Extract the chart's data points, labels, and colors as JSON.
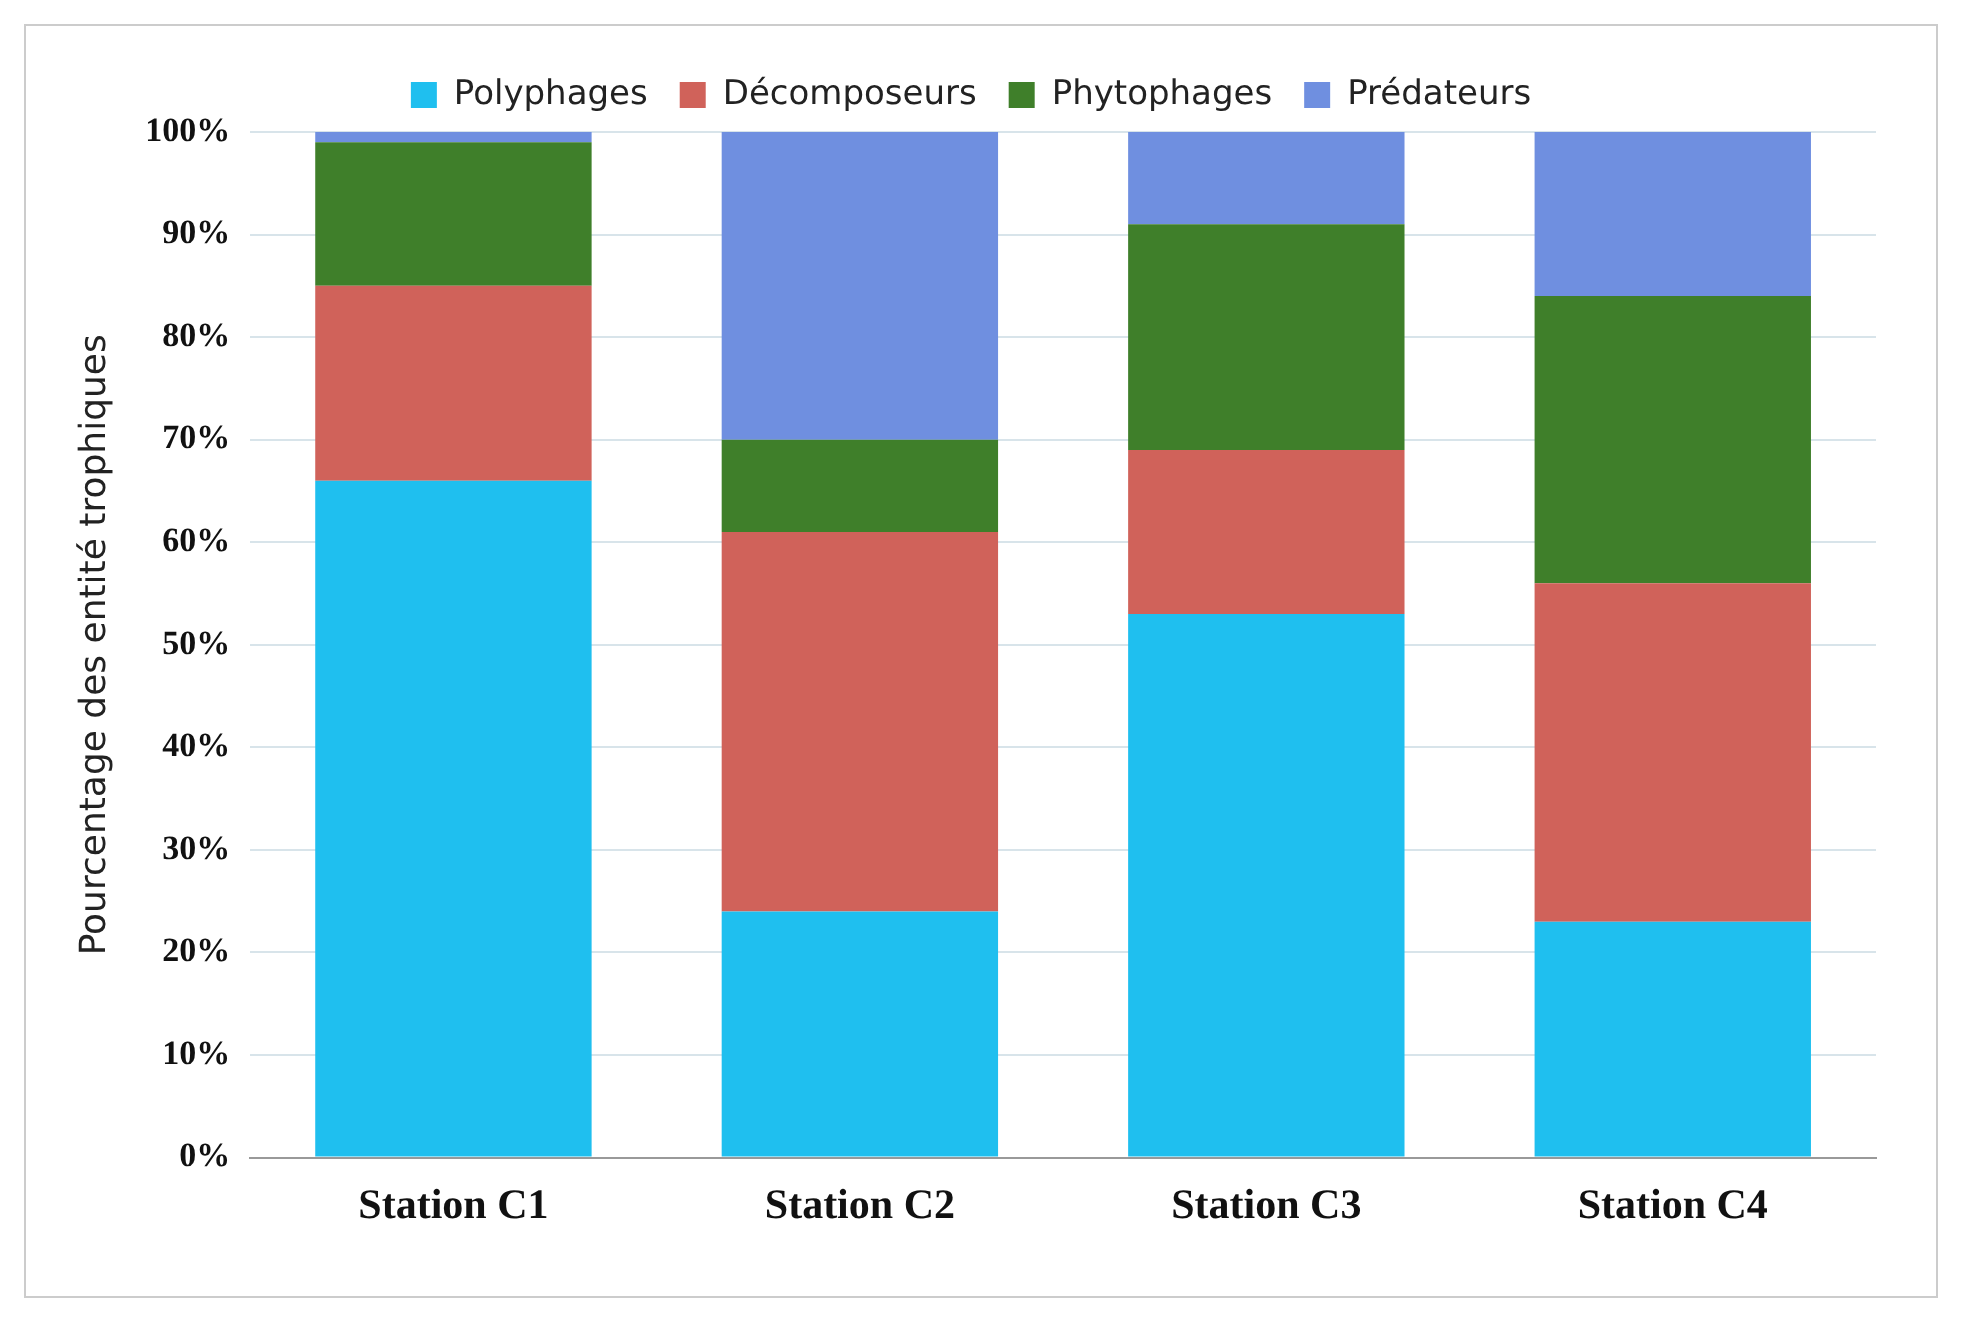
{
  "chart_data": {
    "type": "bar",
    "stacked": true,
    "ylabel": "Pourcentage des entité trophiques",
    "categories": [
      "Station C1",
      "Station C2",
      "Station C3",
      "Station C4"
    ],
    "series": [
      {
        "name": "Polyphages",
        "color": "#1fbfef",
        "values": [
          66,
          24,
          53,
          23
        ]
      },
      {
        "name": "Décomposeurs",
        "color": "#d0625a",
        "values": [
          19,
          37,
          16,
          33
        ]
      },
      {
        "name": "Phytophages",
        "color": "#3f7f2a",
        "values": [
          14,
          9,
          22,
          28
        ]
      },
      {
        "name": "Prédateurs",
        "color": "#6f8fe0",
        "values": [
          1,
          30,
          9,
          16
        ]
      }
    ],
    "ylim": [
      0,
      100
    ],
    "yticks": [
      {
        "value": 0,
        "label": "0%"
      },
      {
        "value": 10,
        "label": "10%"
      },
      {
        "value": 20,
        "label": "20%"
      },
      {
        "value": 30,
        "label": "30%"
      },
      {
        "value": 40,
        "label": "40%"
      },
      {
        "value": 50,
        "label": "50%"
      },
      {
        "value": 60,
        "label": "60%"
      },
      {
        "value": 70,
        "label": "70%"
      },
      {
        "value": 80,
        "label": "80%"
      },
      {
        "value": 90,
        "label": "90%"
      },
      {
        "value": 100,
        "label": "100%"
      }
    ],
    "grid": "y",
    "legend": "top"
  }
}
